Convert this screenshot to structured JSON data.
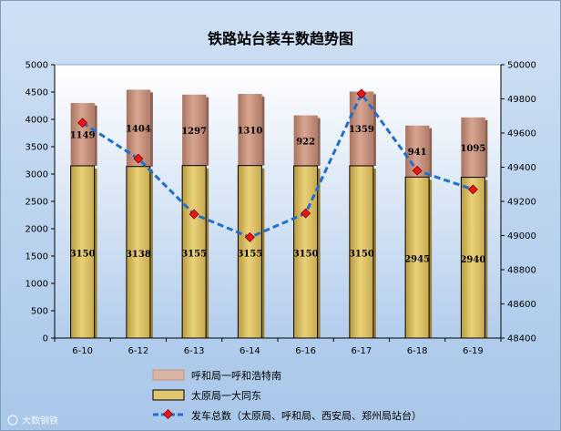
{
  "chart_data": {
    "type": "bar",
    "title": "铁路站台装车数趋势图",
    "categories": [
      "6-10",
      "6-12",
      "6-13",
      "6-14",
      "6-16",
      "6-17",
      "6-18",
      "6-19"
    ],
    "series": [
      {
        "name": "太原局一大同东",
        "type": "bar",
        "stack": "main",
        "axis": "left",
        "color": "#e2c670",
        "values": [
          3150,
          3138,
          3155,
          3155,
          3150,
          3150,
          2945,
          2940
        ]
      },
      {
        "name": "呼和局一呼和浩特南",
        "type": "bar",
        "stack": "main",
        "axis": "left",
        "color": "#c8917d",
        "values": [
          1149,
          1404,
          1297,
          1310,
          922,
          1359,
          941,
          1095
        ]
      },
      {
        "name": "发车总数（太原局、呼和局、西安局、郑州局站台）",
        "type": "line",
        "axis": "right",
        "color": "#1f6fd1",
        "marker_color": "#e8161a",
        "values": [
          49660,
          49450,
          49125,
          48990,
          49130,
          49830,
          49380,
          49270
        ]
      }
    ],
    "y_left": {
      "min": 0,
      "max": 5000,
      "ticks": [
        "0",
        "500",
        "1000",
        "1500",
        "2000",
        "2500",
        "3000",
        "3500",
        "4000",
        "4500",
        "5000"
      ]
    },
    "y_right": {
      "min": 48400,
      "max": 50000,
      "ticks": [
        "48400",
        "48600",
        "48800",
        "49000",
        "49200",
        "49400",
        "49600",
        "49800",
        "50000"
      ]
    },
    "grid": false,
    "legend": "bottom"
  },
  "watermark": "大数钢铁"
}
